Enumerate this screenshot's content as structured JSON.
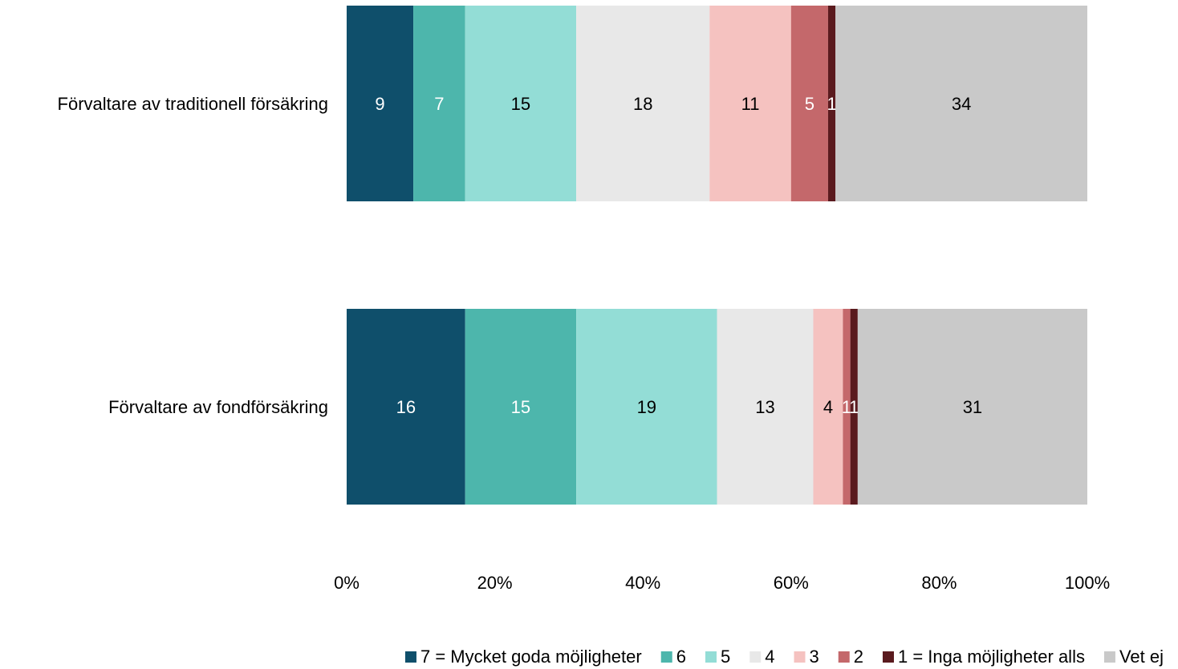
{
  "chart_data": {
    "type": "bar",
    "orientation": "horizontal",
    "stacked": "percent",
    "title": "",
    "xlabel": "",
    "ylabel": "",
    "xlim": [
      0,
      100
    ],
    "x_ticks": [
      "0%",
      "20%",
      "40%",
      "60%",
      "80%",
      "100%"
    ],
    "grid": false,
    "legend_position": "bottom",
    "categories": [
      "Förvaltare av traditionell försäkring",
      "Förvaltare av fondförsäkring"
    ],
    "series": [
      {
        "name": "7 = Mycket goda möjligheter",
        "color": "#0F4F6B",
        "label_color": "#FFFFFF",
        "values": [
          9,
          16
        ]
      },
      {
        "name": "6",
        "color": "#4DB6AC",
        "label_color": "#FFFFFF",
        "values": [
          7,
          15
        ]
      },
      {
        "name": "5",
        "color": "#93DDD6",
        "label_color": "#000000",
        "values": [
          15,
          19
        ]
      },
      {
        "name": "4",
        "color": "#E8E8E8",
        "label_color": "#000000",
        "values": [
          18,
          13
        ]
      },
      {
        "name": "3",
        "color": "#F5C2C0",
        "label_color": "#000000",
        "values": [
          11,
          4
        ]
      },
      {
        "name": "2",
        "color": "#C4686B",
        "label_color": "#FFFFFF",
        "values": [
          5,
          1
        ]
      },
      {
        "name": "1 = Inga möjligheter alls",
        "color": "#5A1A1E",
        "label_color": "#FFFFFF",
        "values": [
          1,
          1
        ]
      },
      {
        "name": "Vet ej",
        "color": "#C9C9C9",
        "label_color": "#000000",
        "values": [
          34,
          31
        ]
      }
    ]
  }
}
